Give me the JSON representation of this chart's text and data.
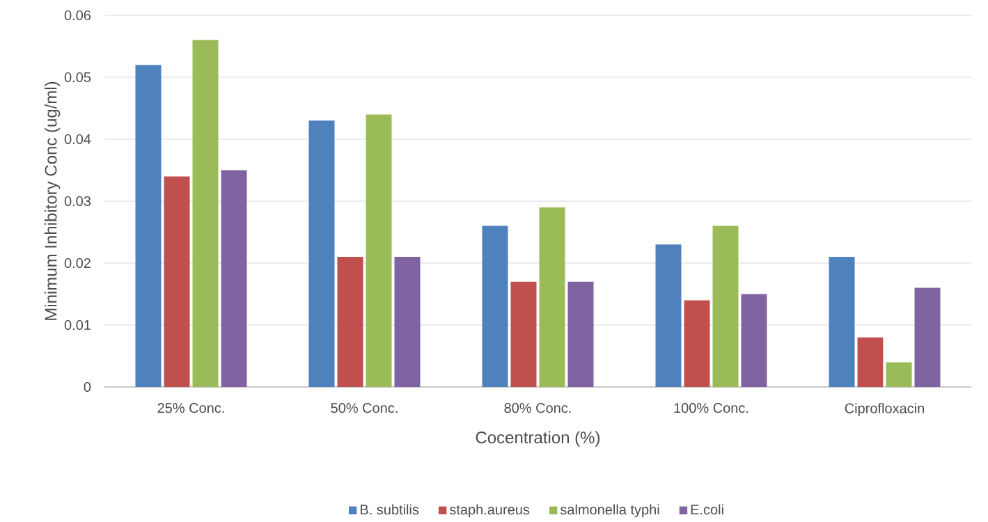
{
  "chart_data": {
    "type": "bar",
    "xlabel": "Cocentration (%)",
    "ylabel": "Minimum Inhibitory Conc (ug/ml)",
    "categories": [
      "25% Conc.",
      "50% Conc.",
      "80% Conc.",
      "100% Conc.",
      "Ciprofloxacin"
    ],
    "series": [
      {
        "name": "B. subtilis",
        "color": "#4f81bd",
        "values": [
          0.052,
          0.043,
          0.026,
          0.023,
          0.021
        ]
      },
      {
        "name": "staph.aureus",
        "color": "#c0504d",
        "values": [
          0.034,
          0.021,
          0.017,
          0.014,
          0.008
        ]
      },
      {
        "name": "salmonella typhi",
        "color": "#9bbb59",
        "values": [
          0.056,
          0.044,
          0.029,
          0.026,
          0.004
        ]
      },
      {
        "name": "E.coli",
        "color": "#8064a2",
        "values": [
          0.035,
          0.021,
          0.017,
          0.015,
          0.016
        ]
      }
    ],
    "ylim": [
      0,
      0.06
    ],
    "yticks": [
      0,
      0.01,
      0.02,
      0.03,
      0.04,
      0.05,
      0.06
    ],
    "grid": "y",
    "legend": "bottom"
  }
}
